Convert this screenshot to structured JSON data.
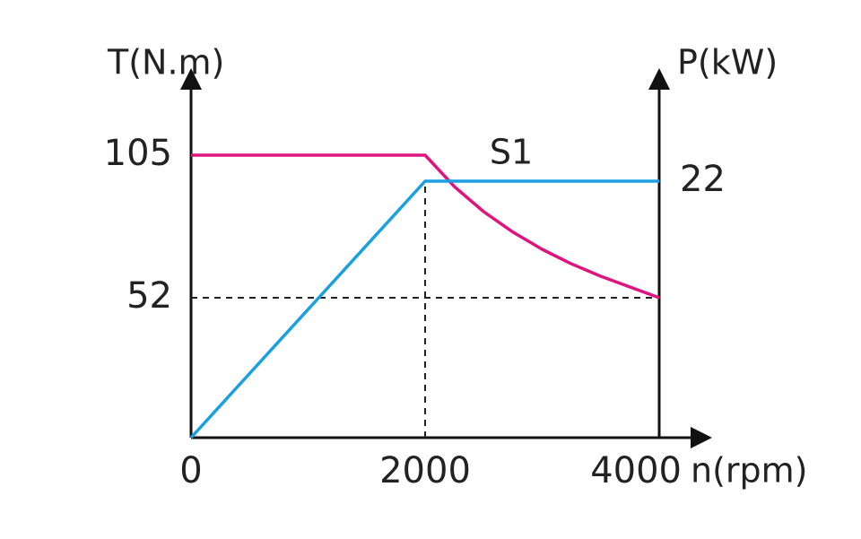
{
  "chart_data": {
    "type": "line",
    "x_label": "n(rpm)",
    "y_label": "T(N.m)",
    "y2_label": "P(kW)",
    "annotation": "S1",
    "x": [
      0,
      2000,
      2250,
      2500,
      2750,
      3000,
      3250,
      3500,
      3750,
      4000
    ],
    "series": [
      {
        "name": "T",
        "color": "#e0147f",
        "values": [
          105,
          105,
          93.3,
          84,
          76.4,
          70,
          64.6,
          60,
          56,
          52
        ]
      },
      {
        "name": "P",
        "color": "#1aa0e0",
        "axis": "y2",
        "values": [
          0,
          22,
          22,
          22,
          22,
          22,
          22,
          22,
          22,
          22
        ]
      }
    ],
    "xlim": [
      0,
      4000
    ],
    "xticks": [
      0,
      2000,
      4000
    ],
    "ylim": [
      0,
      130
    ],
    "yticks": [
      52,
      105
    ],
    "y2lim": [
      0,
      30
    ],
    "y2ticks": [
      22
    ]
  }
}
